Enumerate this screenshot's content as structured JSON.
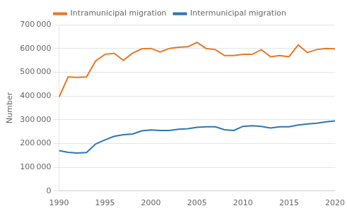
{
  "chart_data": {
    "type": "line",
    "ylabel": "Number",
    "x": [
      1990,
      1991,
      1992,
      1993,
      1994,
      1995,
      1996,
      1997,
      1998,
      1999,
      2000,
      2001,
      2002,
      2003,
      2004,
      2005,
      2006,
      2007,
      2008,
      2009,
      2010,
      2011,
      2012,
      2013,
      2014,
      2015,
      2016,
      2017,
      2018,
      2019,
      2020
    ],
    "series": [
      {
        "name": "Intramunicipal migration",
        "color": "#E87722",
        "values": [
          395000,
          480000,
          478000,
          480000,
          548000,
          575000,
          580000,
          550000,
          580000,
          598000,
          600000,
          585000,
          600000,
          605000,
          607000,
          625000,
          600000,
          595000,
          570000,
          570000,
          575000,
          575000,
          595000,
          565000,
          570000,
          565000,
          615000,
          583000,
          595000,
          600000,
          598000
        ]
      },
      {
        "name": "Intermunicipal migration",
        "color": "#2E75B6",
        "values": [
          170000,
          163000,
          160000,
          162000,
          198000,
          215000,
          230000,
          237000,
          240000,
          253000,
          257000,
          255000,
          255000,
          260000,
          262000,
          268000,
          270000,
          270000,
          258000,
          255000,
          272000,
          275000,
          272000,
          265000,
          270000,
          270000,
          278000,
          282000,
          285000,
          291000,
          295000
        ]
      }
    ],
    "xlim": [
      1990,
      2020
    ],
    "xticks": [
      1990,
      1995,
      2000,
      2005,
      2010,
      2015,
      2020
    ],
    "ylim": [
      0,
      700000
    ],
    "yticks": [
      0,
      {
        "value": 100000,
        "label": "100 000"
      },
      {
        "value": 200000,
        "label": "200 000"
      },
      {
        "value": 300000,
        "label": "300 000"
      },
      {
        "value": 400000,
        "label": "400 000"
      },
      {
        "value": 500000,
        "label": "500 000"
      },
      {
        "value": 600000,
        "label": "600 000"
      },
      {
        "value": 700000,
        "label": "700 000"
      }
    ],
    "grid": "y",
    "legend": "top"
  }
}
